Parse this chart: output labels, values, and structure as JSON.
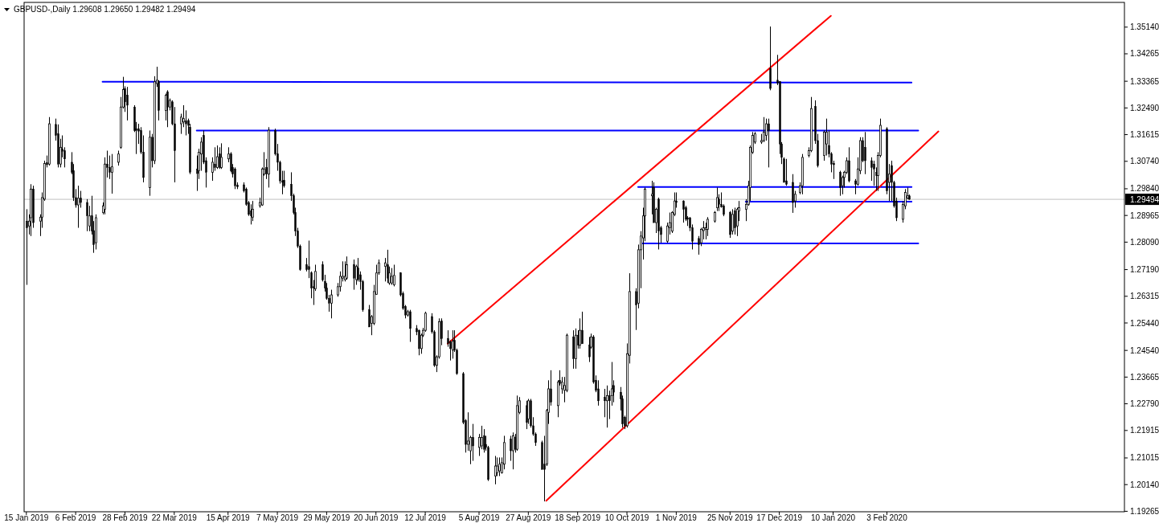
{
  "chart_data": {
    "type": "candlestick",
    "title": "GBPUSD-,Daily 1.29608 1.29650 1.29482 1.29494",
    "color": "#000000",
    "x": [
      "2019-01-15",
      "2019-01-16",
      "2019-01-17",
      "2019-01-18",
      "2019-01-21",
      "2019-01-22",
      "2019-01-23",
      "2019-01-24",
      "2019-01-25",
      "2019-01-28",
      "2019-01-29",
      "2019-01-30",
      "2019-01-31",
      "2019-02-01",
      "2019-02-04",
      "2019-02-05",
      "2019-02-06",
      "2019-02-07",
      "2019-02-08",
      "2019-02-11",
      "2019-02-12",
      "2019-02-13",
      "2019-02-14",
      "2019-02-15",
      "2019-02-18",
      "2019-02-19",
      "2019-02-20",
      "2019-02-21",
      "2019-02-22",
      "2019-02-25",
      "2019-02-26",
      "2019-02-27",
      "2019-02-28",
      "2019-03-01",
      "2019-03-04",
      "2019-03-05",
      "2019-03-06",
      "2019-03-07",
      "2019-03-08",
      "2019-03-11",
      "2019-03-12",
      "2019-03-13",
      "2019-03-14",
      "2019-03-15",
      "2019-03-18",
      "2019-03-19",
      "2019-03-20",
      "2019-03-21",
      "2019-03-22",
      "2019-03-25",
      "2019-03-26",
      "2019-03-27",
      "2019-03-28",
      "2019-03-29",
      "2019-04-01",
      "2019-04-02",
      "2019-04-03",
      "2019-04-04",
      "2019-04-05",
      "2019-04-08",
      "2019-04-09",
      "2019-04-10",
      "2019-04-11",
      "2019-04-12",
      "2019-04-15",
      "2019-04-16",
      "2019-04-17",
      "2019-04-18",
      "2019-04-19",
      "2019-04-22",
      "2019-04-23",
      "2019-04-24",
      "2019-04-25",
      "2019-04-26",
      "2019-04-29",
      "2019-04-30",
      "2019-05-01",
      "2019-05-02",
      "2019-05-03",
      "2019-05-06",
      "2019-05-07",
      "2019-05-08",
      "2019-05-09",
      "2019-05-10",
      "2019-05-13",
      "2019-05-14",
      "2019-05-15",
      "2019-05-16",
      "2019-05-17",
      "2019-05-20",
      "2019-05-21",
      "2019-05-22",
      "2019-05-23",
      "2019-05-24",
      "2019-05-27",
      "2019-05-28",
      "2019-05-29",
      "2019-05-30",
      "2019-05-31",
      "2019-06-03",
      "2019-06-04",
      "2019-06-05",
      "2019-06-06",
      "2019-06-07",
      "2019-06-10",
      "2019-06-11",
      "2019-06-12",
      "2019-06-13",
      "2019-06-14",
      "2019-06-17",
      "2019-06-18",
      "2019-06-19",
      "2019-06-20",
      "2019-06-21",
      "2019-06-24",
      "2019-06-25",
      "2019-06-26",
      "2019-06-27",
      "2019-06-28",
      "2019-07-01",
      "2019-07-02",
      "2019-07-03",
      "2019-07-04",
      "2019-07-05",
      "2019-07-08",
      "2019-07-09",
      "2019-07-10",
      "2019-07-11",
      "2019-07-12",
      "2019-07-15",
      "2019-07-16",
      "2019-07-17",
      "2019-07-18",
      "2019-07-19",
      "2019-07-22",
      "2019-07-23",
      "2019-07-24",
      "2019-07-25",
      "2019-07-26",
      "2019-07-29",
      "2019-07-30",
      "2019-07-31",
      "2019-08-01",
      "2019-08-02",
      "2019-08-05",
      "2019-08-06",
      "2019-08-07",
      "2019-08-08",
      "2019-08-09",
      "2019-08-12",
      "2019-08-13",
      "2019-08-14",
      "2019-08-15",
      "2019-08-16",
      "2019-08-19",
      "2019-08-20",
      "2019-08-21",
      "2019-08-22",
      "2019-08-23",
      "2019-08-26",
      "2019-08-27",
      "2019-08-28",
      "2019-08-29",
      "2019-08-30",
      "2019-09-02",
      "2019-09-03",
      "2019-09-04",
      "2019-09-05",
      "2019-09-06",
      "2019-09-09",
      "2019-09-10",
      "2019-09-11",
      "2019-09-12",
      "2019-09-13",
      "2019-09-16",
      "2019-09-17",
      "2019-09-18",
      "2019-09-19",
      "2019-09-20",
      "2019-09-23",
      "2019-09-24",
      "2019-09-25",
      "2019-09-26",
      "2019-09-27",
      "2019-09-30",
      "2019-10-01",
      "2019-10-02",
      "2019-10-03",
      "2019-10-04",
      "2019-10-07",
      "2019-10-08",
      "2019-10-09",
      "2019-10-10",
      "2019-10-11",
      "2019-10-14",
      "2019-10-15",
      "2019-10-16",
      "2019-10-17",
      "2019-10-18",
      "2019-10-21",
      "2019-10-22",
      "2019-10-23",
      "2019-10-24",
      "2019-10-25",
      "2019-10-28",
      "2019-10-29",
      "2019-10-30",
      "2019-10-31",
      "2019-11-01",
      "2019-11-04",
      "2019-11-05",
      "2019-11-06",
      "2019-11-07",
      "2019-11-08",
      "2019-11-11",
      "2019-11-12",
      "2019-11-13",
      "2019-11-14",
      "2019-11-15",
      "2019-11-18",
      "2019-11-19",
      "2019-11-20",
      "2019-11-21",
      "2019-11-22",
      "2019-11-25",
      "2019-11-26",
      "2019-11-27",
      "2019-11-28",
      "2019-11-29",
      "2019-12-02",
      "2019-12-03",
      "2019-12-04",
      "2019-12-05",
      "2019-12-06",
      "2019-12-09",
      "2019-12-10",
      "2019-12-11",
      "2019-12-12",
      "2019-12-13",
      "2019-12-16",
      "2019-12-17",
      "2019-12-18",
      "2019-12-19",
      "2019-12-20",
      "2019-12-23",
      "2019-12-24",
      "2019-12-26",
      "2019-12-27",
      "2019-12-30",
      "2019-12-31",
      "2020-01-02",
      "2020-01-03",
      "2020-01-06",
      "2020-01-07",
      "2020-01-08",
      "2020-01-09",
      "2020-01-10",
      "2020-01-13",
      "2020-01-14",
      "2020-01-15",
      "2020-01-16",
      "2020-01-17",
      "2020-01-20",
      "2020-01-21",
      "2020-01-22",
      "2020-01-23",
      "2020-01-24",
      "2020-01-27",
      "2020-01-28",
      "2020-01-29",
      "2020-01-30",
      "2020-01-31",
      "2020-02-03",
      "2020-02-04",
      "2020-02-05",
      "2020-02-06",
      "2020-02-07",
      "2020-02-10",
      "2020-02-11",
      "2020-02-12",
      "2020-02-13"
    ],
    "ohlc": [
      [
        1.2878,
        1.2917,
        1.2669,
        1.2856
      ],
      [
        1.2862,
        1.29,
        1.2834,
        1.2878
      ],
      [
        1.2889,
        1.2999,
        1.2829,
        1.2983
      ],
      [
        1.2983,
        1.2994,
        1.2856,
        1.2873
      ],
      [
        1.2878,
        1.29,
        1.2829,
        1.2891
      ],
      [
        1.2891,
        1.2972,
        1.2856,
        1.2955
      ],
      [
        1.295,
        1.3076,
        1.2944,
        1.3067
      ],
      [
        1.3069,
        1.3093,
        1.3054,
        1.3063
      ],
      [
        1.3065,
        1.3219,
        1.306,
        1.3197
      ],
      [
        1.3195,
        1.3214,
        1.3142,
        1.3159
      ],
      [
        1.3164,
        1.3195,
        1.3054,
        1.3065
      ],
      [
        1.3065,
        1.3148,
        1.3054,
        1.312
      ],
      [
        1.3115,
        1.3159,
        1.3087,
        1.3107
      ],
      [
        1.3109,
        1.312,
        1.3054,
        1.3082
      ],
      [
        1.3071,
        1.3104,
        1.3032,
        1.3038
      ],
      [
        1.3043,
        1.3065,
        1.2944,
        1.2955
      ],
      [
        1.2955,
        1.2983,
        1.2922,
        1.2931
      ],
      [
        1.2931,
        1.2994,
        1.2856,
        1.2953
      ],
      [
        1.2953,
        1.2977,
        1.2922,
        1.2939
      ],
      [
        1.2939,
        1.295,
        1.2845,
        1.2895
      ],
      [
        1.2862,
        1.2928,
        1.2845,
        1.2895
      ],
      [
        1.2895,
        1.2961,
        1.2834,
        1.2845
      ],
      [
        1.2847,
        1.2878,
        1.2774,
        1.2801
      ],
      [
        1.2807,
        1.29,
        1.2785,
        1.2889
      ],
      [
        1.2906,
        1.2939,
        1.29,
        1.2928
      ],
      [
        1.2917,
        1.3087,
        1.29,
        1.3065
      ],
      [
        1.3065,
        1.3109,
        1.3021,
        1.3054
      ],
      [
        1.3054,
        1.3093,
        1.3016,
        1.3038
      ],
      [
        1.3038,
        1.3098,
        1.2968,
        1.3056
      ],
      [
        1.3071,
        1.3109,
        1.306,
        1.3098
      ],
      [
        1.312,
        1.3285,
        1.3115,
        1.3252
      ],
      [
        1.3252,
        1.3351,
        1.3247,
        1.3309
      ],
      [
        1.3312,
        1.332,
        1.3236,
        1.3269
      ],
      [
        1.3291,
        1.3318,
        1.3208,
        1.3258
      ],
      [
        1.3252,
        1.3258,
        1.317,
        1.3175
      ],
      [
        1.3181,
        1.3203,
        1.3098,
        1.3175
      ],
      [
        1.3181,
        1.3197,
        1.3131,
        1.3173
      ],
      [
        1.3175,
        1.3186,
        1.3098,
        1.3104
      ],
      [
        1.3104,
        1.3159,
        1.3005,
        1.3021
      ],
      [
        1.2988,
        1.3175,
        1.2961,
        1.3153
      ],
      [
        1.3153,
        1.3164,
        1.3054,
        1.3076
      ],
      [
        1.3076,
        1.3353,
        1.3065,
        1.3335
      ],
      [
        1.3329,
        1.3384,
        1.3318,
        1.334
      ],
      [
        1.3335,
        1.334,
        1.3208,
        1.3241
      ],
      [
        1.3241,
        1.3296,
        1.3208,
        1.3291
      ],
      [
        1.3302,
        1.3307,
        1.3186,
        1.3252
      ],
      [
        1.3252,
        1.328,
        1.3241,
        1.3274
      ],
      [
        1.3269,
        1.3274,
        1.3192,
        1.3197
      ],
      [
        1.3197,
        1.3252,
        1.3005,
        1.3109
      ],
      [
        1.3197,
        1.323,
        1.3164,
        1.3219
      ],
      [
        1.3203,
        1.3258,
        1.3186,
        1.3214
      ],
      [
        1.3206,
        1.3241,
        1.3159,
        1.3197
      ],
      [
        1.3208,
        1.3214,
        1.3164,
        1.3192
      ],
      [
        1.3186,
        1.3197,
        1.3032,
        1.3038
      ],
      [
        1.3049,
        1.3093,
        1.2977,
        1.3034
      ],
      [
        1.3043,
        1.3115,
        1.3016,
        1.3104
      ],
      [
        1.3098,
        1.3153,
        1.3043,
        1.3137
      ],
      [
        1.3159,
        1.3175,
        1.3065,
        1.3071
      ],
      [
        1.3076,
        1.3087,
        1.2988,
        1.3038
      ],
      [
        1.3038,
        1.3087,
        1.301,
        1.3071
      ],
      [
        1.3065,
        1.312,
        1.3043,
        1.3054
      ],
      [
        1.3054,
        1.3126,
        1.3049,
        1.3089
      ],
      [
        1.3098,
        1.312,
        1.3049,
        1.3054
      ],
      [
        1.3054,
        1.3133,
        1.3049,
        1.3087
      ],
      [
        1.3082,
        1.312,
        1.3071,
        1.3098
      ],
      [
        1.3098,
        1.3104,
        1.3038,
        1.3043
      ],
      [
        1.3054,
        1.3065,
        1.3021,
        1.3032
      ],
      [
        1.3049,
        1.3054,
        1.2983,
        1.2994
      ],
      [
        1.2996,
        1.3005,
        1.2983,
        1.299
      ],
      [
        1.2997,
        1.3005,
        1.2972,
        1.2977
      ],
      [
        1.2983,
        1.2988,
        1.2928,
        1.2933
      ],
      [
        1.2939,
        1.2944,
        1.2895,
        1.29
      ],
      [
        1.2911,
        1.2933,
        1.2867,
        1.2895
      ],
      [
        1.2891,
        1.2944,
        1.2878,
        1.2917
      ],
      [
        1.2928,
        1.2955,
        1.2922,
        1.2939
      ],
      [
        1.2931,
        1.3054,
        1.2928,
        1.3049
      ],
      [
        1.3032,
        1.3104,
        1.3027,
        1.3049
      ],
      [
        1.3054,
        1.3082,
        1.3016,
        1.3032
      ],
      [
        1.3032,
        1.3186,
        1.2988,
        1.3176
      ],
      [
        1.3175,
        1.3181,
        1.3093,
        1.3098
      ],
      [
        1.3098,
        1.3131,
        1.3043,
        1.3071
      ],
      [
        1.3071,
        1.3076,
        1.3001,
        1.301
      ],
      [
        1.301,
        1.3043,
        1.2966,
        1.3005
      ],
      [
        1.3012,
        1.3043,
        1.2988,
        1.2994
      ],
      [
        1.2999,
        1.3038,
        1.2944,
        1.2961
      ],
      [
        1.2961,
        1.2968,
        1.29,
        1.2906
      ],
      [
        1.2906,
        1.2922,
        1.2829,
        1.2845
      ],
      [
        1.2845,
        1.2856,
        1.279,
        1.2796
      ],
      [
        1.2796,
        1.2801,
        1.2715,
        1.2719
      ],
      [
        1.2735,
        1.2757,
        1.2713,
        1.2719
      ],
      [
        1.2729,
        1.2814,
        1.2691,
        1.2719
      ],
      [
        1.2708,
        1.2713,
        1.2625,
        1.2658
      ],
      [
        1.2663,
        1.2685,
        1.2603,
        1.2658
      ],
      [
        1.2656,
        1.2735,
        1.2649,
        1.2713
      ],
      [
        1.2735,
        1.2746,
        1.268,
        1.2685
      ],
      [
        1.268,
        1.2702,
        1.2647,
        1.2658
      ],
      [
        1.2658,
        1.2675,
        1.262,
        1.2625
      ],
      [
        1.2625,
        1.2636,
        1.2581,
        1.2609
      ],
      [
        1.2609,
        1.2653,
        1.2559,
        1.2636
      ],
      [
        1.2636,
        1.2675,
        1.263,
        1.2663
      ],
      [
        1.2663,
        1.2713,
        1.2647,
        1.2697
      ],
      [
        1.2691,
        1.2746,
        1.268,
        1.2697
      ],
      [
        1.2686,
        1.2746,
        1.268,
        1.2697
      ],
      [
        1.2691,
        1.2762,
        1.2686,
        1.2735
      ],
      [
        1.2735,
        1.2752,
        1.2653,
        1.2691
      ],
      [
        1.2686,
        1.2735,
        1.2669,
        1.2729
      ],
      [
        1.2724,
        1.2757,
        1.268,
        1.2686
      ],
      [
        1.2702,
        1.2713,
        1.2653,
        1.268
      ],
      [
        1.268,
        1.2685,
        1.2581,
        1.2587
      ],
      [
        1.2587,
        1.2603,
        1.2531,
        1.2531
      ],
      [
        1.2543,
        1.257,
        1.2504,
        1.2565
      ],
      [
        1.2543,
        1.2669,
        1.2537,
        1.2647
      ],
      [
        1.2638,
        1.2735,
        1.2636,
        1.2708
      ],
      [
        1.2708,
        1.2752,
        1.2702,
        1.2741
      ],
      [
        1.273,
        1.2757,
        1.268,
        1.2741
      ],
      [
        1.2735,
        1.2784,
        1.2675,
        1.2691
      ],
      [
        1.2675,
        1.2729,
        1.2669,
        1.2708
      ],
      [
        1.2675,
        1.2724,
        1.2669,
        1.2697
      ],
      [
        1.2669,
        1.2735,
        1.2664,
        1.27
      ],
      [
        1.2708,
        1.271,
        1.2631,
        1.2636
      ],
      [
        1.2641,
        1.2647,
        1.2587,
        1.2592
      ],
      [
        1.2598,
        1.2603,
        1.2559,
        1.257
      ],
      [
        1.257,
        1.2587,
        1.2565,
        1.2581
      ],
      [
        1.2581,
        1.2587,
        1.2482,
        1.2526
      ],
      [
        1.2526,
        1.2537,
        1.2504,
        1.2515
      ],
      [
        1.252,
        1.2522,
        1.2438,
        1.246
      ],
      [
        1.246,
        1.2509,
        1.2443,
        1.2504
      ],
      [
        1.2504,
        1.2528,
        1.2498,
        1.252
      ],
      [
        1.252,
        1.2581,
        1.2515,
        1.2576
      ],
      [
        1.2565,
        1.2576,
        1.2509,
        1.2515
      ],
      [
        1.2515,
        1.252,
        1.24,
        1.2405
      ],
      [
        1.2405,
        1.2438,
        1.2383,
        1.2433
      ],
      [
        1.2433,
        1.2559,
        1.2427,
        1.2548
      ],
      [
        1.255,
        1.2559,
        1.2471,
        1.2493
      ],
      [
        1.2493,
        1.252,
        1.2466,
        1.2477
      ],
      [
        1.2482,
        1.2487,
        1.2421,
        1.246
      ],
      [
        1.2455,
        1.252,
        1.2427,
        1.2484
      ],
      [
        1.2487,
        1.252,
        1.2449,
        1.2455
      ],
      [
        1.2455,
        1.246,
        1.2374,
        1.2378
      ],
      [
        1.2378,
        1.2383,
        1.2212,
        1.2218
      ],
      [
        1.2224,
        1.2229,
        1.2119,
        1.2146
      ],
      [
        1.2146,
        1.2251,
        1.2125,
        1.2157
      ],
      [
        1.2125,
        1.2174,
        1.2081,
        1.2169
      ],
      [
        1.2169,
        1.2213,
        1.2092,
        1.2141
      ],
      [
        1.2136,
        1.218,
        1.2108,
        1.2169
      ],
      [
        1.2141,
        1.2207,
        1.213,
        1.2169
      ],
      [
        1.2174,
        1.2196,
        1.2119,
        1.213
      ],
      [
        1.2146,
        1.2174,
        1.2125,
        1.2136
      ],
      [
        1.2136,
        1.2141,
        1.2026,
        1.2031
      ],
      [
        1.2042,
        1.2108,
        1.2015,
        1.2075
      ],
      [
        1.2053,
        1.2103,
        1.2042,
        1.2075
      ],
      [
        1.2059,
        1.2103,
        1.2042,
        1.2081
      ],
      [
        1.2053,
        1.2103,
        1.205,
        1.2086
      ],
      [
        1.2081,
        1.2174,
        1.2064,
        1.2152
      ],
      [
        1.2163,
        1.2174,
        1.2092,
        1.2125
      ],
      [
        1.2125,
        1.2185,
        1.2064,
        1.2174
      ],
      [
        1.2169,
        1.218,
        1.2119,
        1.213
      ],
      [
        1.213,
        1.2306,
        1.2125,
        1.2273
      ],
      [
        1.2251,
        1.2301,
        1.2245,
        1.2289
      ],
      [
        1.2273,
        1.2289,
        1.2196,
        1.2218
      ],
      [
        1.2229,
        1.2295,
        1.2213,
        1.2289
      ],
      [
        1.2289,
        1.2295,
        1.2201,
        1.2207
      ],
      [
        1.2207,
        1.2235,
        1.2174,
        1.218
      ],
      [
        1.218,
        1.2185,
        1.2141,
        1.2152
      ],
      [
        1.2152,
        1.2158,
        1.2064,
        1.2064
      ],
      [
        1.2081,
        1.2174,
        1.1959,
        1.2064
      ],
      [
        1.2081,
        1.2262,
        1.2075,
        1.2257
      ],
      [
        1.2251,
        1.2356,
        1.2213,
        1.2328
      ],
      [
        1.2328,
        1.2389,
        1.2273,
        1.2284
      ],
      [
        1.2273,
        1.2356,
        1.2235,
        1.235
      ],
      [
        1.2356,
        1.2389,
        1.2339,
        1.2345
      ],
      [
        1.2328,
        1.2367,
        1.2312,
        1.235
      ],
      [
        1.2323,
        1.2367,
        1.2284,
        1.2339
      ],
      [
        1.2323,
        1.2509,
        1.2317,
        1.2504
      ],
      [
        1.2498,
        1.252,
        1.2394,
        1.2427
      ],
      [
        1.2427,
        1.2526,
        1.2394,
        1.2504
      ],
      [
        1.2504,
        1.252,
        1.246,
        1.2471
      ],
      [
        1.2471,
        1.2559,
        1.246,
        1.252
      ],
      [
        1.252,
        1.2581,
        1.2476,
        1.2476
      ],
      [
        1.2471,
        1.2498,
        1.2416,
        1.2433
      ],
      [
        1.2465,
        1.2509,
        1.246,
        1.2498
      ],
      [
        1.2498,
        1.2504,
        1.2345,
        1.235
      ],
      [
        1.2356,
        1.2372,
        1.2317,
        1.2323
      ],
      [
        1.2328,
        1.2356,
        1.2273,
        1.2289
      ],
      [
        1.23,
        1.2328,
        1.2235,
        1.2289
      ],
      [
        1.2289,
        1.2339,
        1.2201,
        1.2306
      ],
      [
        1.2306,
        1.2322,
        1.2229,
        1.2289
      ],
      [
        1.2306,
        1.2416,
        1.2273,
        1.2328
      ],
      [
        1.2339,
        1.2356,
        1.2284,
        1.2317
      ],
      [
        1.2317,
        1.2334,
        1.2257,
        1.2295
      ],
      [
        1.2295,
        1.2306,
        1.2201,
        1.2213
      ],
      [
        1.2235,
        1.224,
        1.2196,
        1.2207
      ],
      [
        1.2207,
        1.2477,
        1.2201,
        1.2443
      ],
      [
        1.2438,
        1.2707,
        1.2411,
        1.2647
      ],
      [
        1.2647,
        1.2658,
        1.2521,
        1.2603
      ],
      [
        1.2609,
        1.2801,
        1.2592,
        1.2784
      ],
      [
        1.2784,
        1.2845,
        1.2658,
        1.2829
      ],
      [
        1.2823,
        1.2922,
        1.2752,
        1.2895
      ],
      [
        1.2895,
        1.2988,
        1.2812,
        1.2983
      ],
      [
        1.2961,
        1.301,
        1.29,
        1.2966
      ],
      [
        1.2988,
        1.3005,
        1.2873,
        1.2873
      ],
      [
        1.2873,
        1.2922,
        1.2839,
        1.2917
      ],
      [
        1.295,
        1.2955,
        1.2785,
        1.2845
      ],
      [
        1.2856,
        1.2862,
        1.2807,
        1.2834
      ],
      [
        1.2812,
        1.2873,
        1.2807,
        1.2862
      ],
      [
        1.2856,
        1.2906,
        1.2834,
        1.2873
      ],
      [
        1.2845,
        1.2911,
        1.2839,
        1.2906
      ],
      [
        1.29,
        1.2972,
        1.2894,
        1.2944
      ],
      [
        1.2944,
        1.2972,
        1.2922,
        1.2939
      ],
      [
        1.2944,
        1.2946,
        1.2873,
        1.2917
      ],
      [
        1.2922,
        1.2928,
        1.2878,
        1.2884
      ],
      [
        1.2889,
        1.2894,
        1.2862,
        1.2884
      ],
      [
        1.2889,
        1.2891,
        1.2845,
        1.2856
      ],
      [
        1.2856,
        1.2867,
        1.2785,
        1.2812
      ],
      [
        1.2821,
        1.2829,
        1.2768,
        1.2801
      ],
      [
        1.2807,
        1.2856,
        1.2796,
        1.2851
      ],
      [
        1.2847,
        1.2878,
        1.2818,
        1.2856
      ],
      [
        1.2851,
        1.2873,
        1.2818,
        1.2856
      ],
      [
        1.2851,
        1.2891,
        1.2829,
        1.2884
      ],
      [
        1.2878,
        1.2911,
        1.2873,
        1.2906
      ],
      [
        1.2922,
        1.2988,
        1.2911,
        1.2955
      ],
      [
        1.295,
        1.2966,
        1.2911,
        1.2933
      ],
      [
        1.2933,
        1.2972,
        1.2922,
        1.2924
      ],
      [
        1.2928,
        1.2933,
        1.2894,
        1.29
      ],
      [
        1.2906,
        1.2911,
        1.2823,
        1.2834
      ],
      [
        1.2845,
        1.2917,
        1.2834,
        1.29
      ],
      [
        1.2911,
        1.2922,
        1.2834,
        1.2856
      ],
      [
        1.2862,
        1.2922,
        1.2829,
        1.2917
      ],
      [
        1.2911,
        1.2944,
        1.2878,
        1.2922
      ],
      [
        1.2917,
        1.295,
        1.2878,
        1.2933
      ],
      [
        1.2933,
        1.301,
        1.2928,
        1.2994
      ],
      [
        1.2988,
        1.3126,
        1.2944,
        1.312
      ],
      [
        1.3104,
        1.317,
        1.3098,
        1.3159
      ],
      [
        1.3137,
        1.317,
        1.3131,
        1.3164
      ],
      [
        1.3137,
        1.3164,
        1.3131,
        1.3142
      ],
      [
        1.3142,
        1.3219,
        1.3137,
        1.317
      ],
      [
        1.3159,
        1.3214,
        1.3142,
        1.3197
      ],
      [
        1.3197,
        1.3214,
        1.3054,
        1.3175
      ],
      [
        1.3379,
        1.3516,
        1.3307,
        1.3313
      ],
      [
        1.334,
        1.3423,
        1.3324,
        1.3331
      ],
      [
        1.3335,
        1.3337,
        1.3098,
        1.3131
      ],
      [
        1.3131,
        1.3137,
        1.3065,
        1.3087
      ],
      [
        1.3082,
        1.3087,
        1.3005,
        1.3005
      ],
      [
        1.301,
        1.3082,
        1.2994,
        1.2999
      ],
      [
        1.3005,
        1.3032,
        1.2905,
        1.2939
      ],
      [
        1.2944,
        1.2977,
        1.2922,
        1.2966
      ],
      [
        1.2972,
        1.3005,
        1.2966,
        1.2994
      ],
      [
        1.2994,
        1.3098,
        1.2966,
        1.3087
      ],
      [
        1.3093,
        1.312,
        1.3087,
        1.3109
      ],
      [
        1.3109,
        1.3285,
        1.3104,
        1.3247
      ],
      [
        1.3254,
        1.3274,
        1.3131,
        1.3142
      ],
      [
        1.3142,
        1.3164,
        1.3054,
        1.306
      ],
      [
        1.3093,
        1.3175,
        1.3076,
        1.317
      ],
      [
        1.3131,
        1.3214,
        1.3093,
        1.317
      ],
      [
        1.3126,
        1.3175,
        1.3087,
        1.3098
      ],
      [
        1.3098,
        1.3104,
        1.3038,
        1.3065
      ],
      [
        1.3067,
        1.3076,
        1.3016,
        1.3063
      ],
      [
        1.3038,
        1.3043,
        1.2961,
        1.2988
      ],
      [
        1.2994,
        1.3027,
        1.2966,
        1.3021
      ],
      [
        1.3021,
        1.3043,
        1.2988,
        1.3038
      ],
      [
        1.3038,
        1.3087,
        1.3032,
        1.3076
      ],
      [
        1.3076,
        1.312,
        1.3005,
        1.301
      ],
      [
        1.301,
        1.3016,
        1.2966,
        1.2999
      ],
      [
        1.2999,
        1.3087,
        1.2994,
        1.3049
      ],
      [
        1.3043,
        1.3153,
        1.3032,
        1.3142
      ],
      [
        1.3142,
        1.3153,
        1.3071,
        1.3076
      ],
      [
        1.312,
        1.317,
        1.3032,
        1.3076
      ],
      [
        1.3076,
        1.3087,
        1.301,
        1.3054
      ],
      [
        1.3065,
        1.3076,
        1.2994,
        1.3049
      ],
      [
        1.3038,
        1.3054,
        1.2977,
        1.3027
      ],
      [
        1.3027,
        1.3104,
        1.2977,
        1.3093
      ],
      [
        1.3093,
        1.3214,
        1.3087,
        1.3192
      ],
      [
        1.3181,
        1.3186,
        1.2966,
        1.2977
      ],
      [
        1.3005,
        1.3065,
        1.2944,
        1.3032
      ],
      [
        1.306,
        1.3076,
        1.2944,
        1.3005
      ],
      [
        1.3005,
        1.301,
        1.2922,
        1.2928
      ],
      [
        1.2944,
        1.2955,
        1.2878,
        1.2889
      ],
      [
        1.2884,
        1.2944,
        1.2873,
        1.2933
      ],
      [
        1.2928,
        1.2983,
        1.2917,
        1.2972
      ],
      [
        1.2953,
        1.2988,
        1.295,
        1.2961
      ],
      [
        1.29608,
        1.2965,
        1.29482,
        1.29494
      ]
    ],
    "series": [
      {
        "type": "line",
        "color": "#0000ff",
        "x": [
          "2019-02-18",
          "2020-02-14"
        ],
        "values": [
          1.3335,
          1.3332
        ]
      },
      {
        "type": "line",
        "color": "#0000ff",
        "x": [
          "2019-04-01",
          "2020-02-17"
        ],
        "values": [
          1.3175,
          1.3175
        ]
      },
      {
        "type": "line",
        "color": "#0000ff",
        "x": [
          "2019-10-15",
          "2020-02-14"
        ],
        "values": [
          1.299,
          1.299
        ]
      },
      {
        "type": "line",
        "color": "#0000ff",
        "x": [
          "2019-12-02",
          "2020-02-14"
        ],
        "values": [
          1.2942,
          1.2942
        ]
      },
      {
        "type": "line",
        "color": "#0000ff",
        "x": [
          "2019-10-17",
          "2020-02-17"
        ],
        "values": [
          1.2805,
          1.2805
        ]
      },
      {
        "type": "line",
        "color": "#ff0000",
        "x": [
          "2019-07-22",
          "2020-01-09"
        ],
        "values": [
          1.2476,
          1.3551
        ]
      },
      {
        "type": "line",
        "color": "#ff0000",
        "x": [
          "2019-09-04",
          "2020-02-26"
        ],
        "values": [
          1.1961,
          1.3172
        ]
      }
    ],
    "ref_lines": [
      {
        "axis": "y",
        "value": 1.29494,
        "label": "1.29494",
        "color": "#c0c0c0"
      }
    ],
    "xlim": [
      "2019-01-14",
      "2020-05-19"
    ],
    "ylim": [
      1.1925,
      1.3595
    ],
    "xticks": [
      {
        "value": "2019-01-15",
        "label": "15 Jan 2019"
      },
      {
        "value": "2019-02-06",
        "label": "6 Feb 2019"
      },
      {
        "value": "2019-02-28",
        "label": "28 Feb 2019"
      },
      {
        "value": "2019-03-22",
        "label": "22 Mar 2019"
      },
      {
        "value": "2019-04-15",
        "label": "15 Apr 2019"
      },
      {
        "value": "2019-05-07",
        "label": "7 May 2019"
      },
      {
        "value": "2019-05-29",
        "label": "29 May 2019"
      },
      {
        "value": "2019-06-20",
        "label": "20 Jun 2019"
      },
      {
        "value": "2019-07-12",
        "label": "12 Jul 2019"
      },
      {
        "value": "2019-08-05",
        "label": "5 Aug 2019"
      },
      {
        "value": "2019-08-27",
        "label": "27 Aug 2019"
      },
      {
        "value": "2019-09-18",
        "label": "18 Sep 2019"
      },
      {
        "value": "2019-10-10",
        "label": "10 Oct 2019"
      },
      {
        "value": "2019-11-01",
        "label": "1 Nov 2019"
      },
      {
        "value": "2019-11-25",
        "label": "25 Nov 2019"
      },
      {
        "value": "2019-12-17",
        "label": "17 Dec 2019"
      },
      {
        "value": "2020-01-10",
        "label": "10 Jan 2020"
      },
      {
        "value": "2020-02-03",
        "label": "3 Feb 2020"
      }
    ],
    "yticks": [
      {
        "value": 1.3514,
        "label": "1.35140"
      },
      {
        "value": 1.34265,
        "label": "1.34265"
      },
      {
        "value": 1.33365,
        "label": "1.33365"
      },
      {
        "value": 1.3249,
        "label": "1.32490"
      },
      {
        "value": 1.31615,
        "label": "1.31615"
      },
      {
        "value": 1.3074,
        "label": "1.30740"
      },
      {
        "value": 1.2984,
        "label": "1.29840"
      },
      {
        "value": 1.28965,
        "label": "1.28965"
      },
      {
        "value": 1.2809,
        "label": "1.28090"
      },
      {
        "value": 1.2719,
        "label": "1.27190"
      },
      {
        "value": 1.26315,
        "label": "1.26315"
      },
      {
        "value": 1.2544,
        "label": "1.25440"
      },
      {
        "value": 1.2454,
        "label": "1.24540"
      },
      {
        "value": 1.23665,
        "label": "1.23665"
      },
      {
        "value": 1.2279,
        "label": "1.22790"
      },
      {
        "value": 1.21915,
        "label": "1.21915"
      },
      {
        "value": 1.21015,
        "label": "1.21015"
      },
      {
        "value": 1.2014,
        "label": "1.20140"
      },
      {
        "value": 1.19265,
        "label": "1.19265"
      }
    ]
  }
}
